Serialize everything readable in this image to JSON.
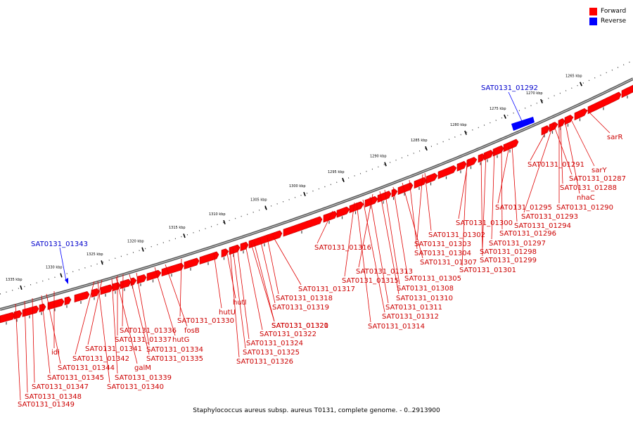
{
  "legend": {
    "forward_label": "Forward",
    "forward_color": "#ff0000",
    "reverse_label": "Reverse",
    "reverse_color": "#0000ff"
  },
  "colors": {
    "forward": "#ff0000",
    "forward_shadow": "#c00000",
    "reverse": "#0000ff",
    "label_forward": "#cc0000",
    "label_reverse": "#0000cc",
    "backbone": "#7f7f7f"
  },
  "caption": "Staphylococcus aureus subsp. aureus T0131, complete genome. - 0..2913900",
  "scale_labels": [
    "1265 kbp",
    "1270 kbp",
    "1275 kbp",
    "1280 kbp",
    "1285 kbp",
    "1290 kbp",
    "1295 kbp",
    "1300 kbp",
    "1305 kbp",
    "1310 kbp",
    "1315 kbp",
    "1320 kbp",
    "1325 kbp",
    "1330 kbp",
    "1335 kbp"
  ],
  "reverse_genes": [
    "SAT0131_01292",
    "SAT0131_01343"
  ],
  "forward_labels": [
    "sarR",
    "sarY",
    "SAT0131_01291",
    "SAT0131_01287",
    "SAT0131_01288",
    "nhaC",
    "SAT0131_01290",
    "SAT0131_01295",
    "SAT0131_01293",
    "SAT0131_01294",
    "SAT0131_01300",
    "SAT0131_01296",
    "SAT0131_01302",
    "SAT0131_01297",
    "SAT0131_01303",
    "SAT0131_01298",
    "SAT0131_01304",
    "SAT0131_01299",
    "SAT0131_01307",
    "SAT0131_01301",
    "SAT0131_01305",
    "SAT0131_01316",
    "SAT0131_01313",
    "SAT0131_01315",
    "SAT0131_01308",
    "SAT0131_01310",
    "SAT0131_01311",
    "SAT0131_01312",
    "SAT0131_01314",
    "SAT0131_01317",
    "SAT0131_01318",
    "SAT0131_01319",
    "SAT0131_01320",
    "SAT0131_01321",
    "SAT0131_01322",
    "hutI",
    "hutU",
    "SAT0131_01330",
    "SAT0131_01324",
    "SAT0131_01325",
    "SAT0131_01326",
    "fosB",
    "hutG",
    "SAT0131_01336",
    "SAT0131_01337",
    "SAT0131_01334",
    "SAT0131_01335",
    "SAT0131_01341",
    "SAT0131_01342",
    "galM",
    "SAT0131_01339",
    "SAT0131_01340",
    "idi",
    "SAT0131_01344",
    "SAT0131_01345",
    "SAT0131_01347",
    "SAT0131_01348",
    "SAT0131_01349"
  ]
}
